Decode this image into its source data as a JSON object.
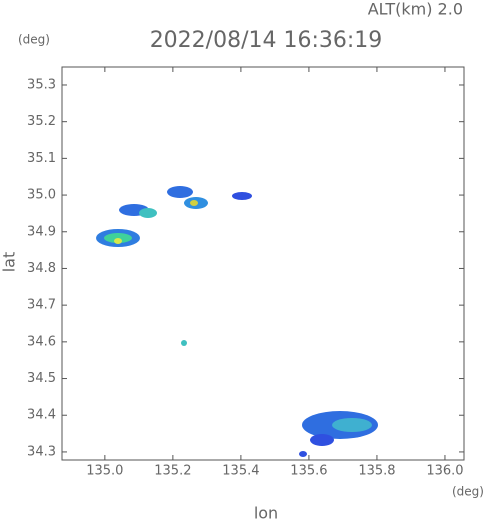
{
  "header": {
    "altitude": "ALT(km) 2.0",
    "timestamp": "2022/08/14 16:36:19"
  },
  "chart_data": {
    "type": "map",
    "x_label": "lon",
    "y_label": "lat",
    "x_unit": "(deg)",
    "y_unit": "(deg)",
    "xlim": [
      134.874,
      136.056
    ],
    "ylim": [
      34.278,
      35.349
    ],
    "xticks": [
      {
        "value": 135,
        "label": "135.0"
      },
      135.2,
      135.4,
      135.6,
      135.8,
      {
        "value": 136,
        "label": "136.0"
      }
    ],
    "yticks": [
      34.3,
      34.4,
      34.5,
      34.6,
      34.7,
      34.8,
      34.9,
      {
        "value": 35,
        "label": "35.0"
      },
      35.1,
      35.2,
      35.3
    ]
  }
}
